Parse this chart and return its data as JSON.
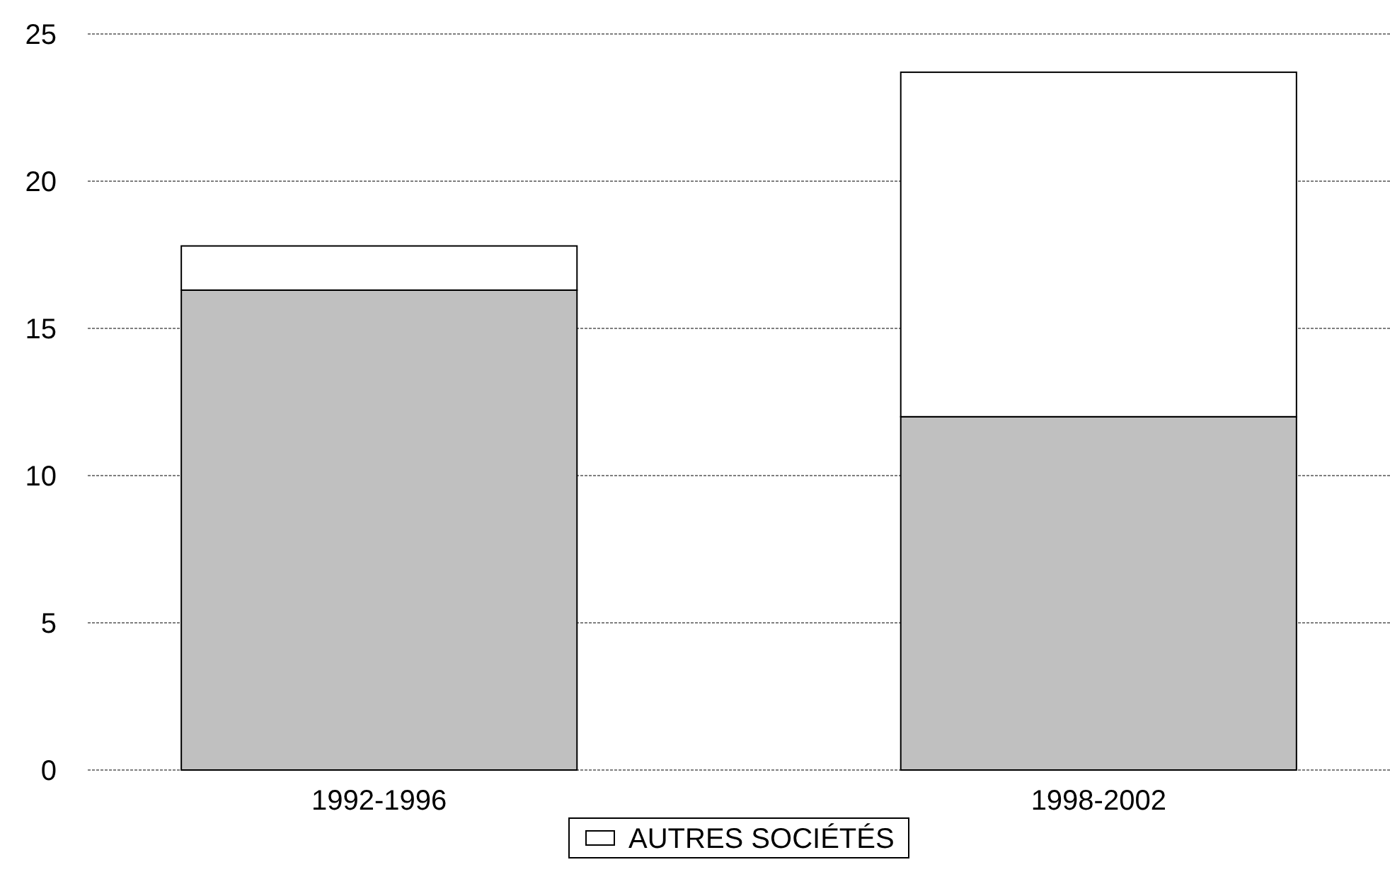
{
  "chart_data": {
    "type": "bar",
    "stacked": true,
    "categories": [
      "1992-1996",
      "1998-2002"
    ],
    "series": [
      {
        "color": "#c0c0c0",
        "values": [
          16.3,
          12.0
        ]
      },
      {
        "name": "AUTRES SOCIÉTÉS",
        "color": "#ffffff",
        "values": [
          1.5,
          11.7
        ]
      }
    ],
    "ylim": [
      0,
      25
    ],
    "yticks": [
      0,
      5,
      10,
      15,
      20,
      25
    ],
    "grid": "y",
    "legend": "bottom"
  }
}
